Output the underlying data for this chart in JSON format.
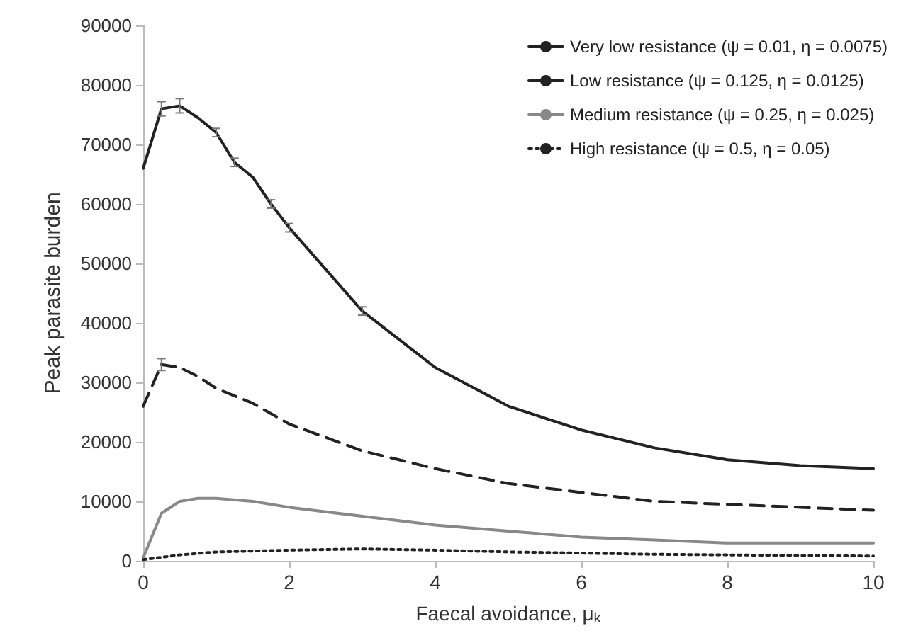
{
  "chart_data": {
    "type": "line",
    "xlabel": "Faecal avoidance, μ$_{k}$",
    "ylabel": "Peak parasite burden",
    "xlim": [
      0,
      10
    ],
    "xticks": [
      0,
      2,
      4,
      6,
      8,
      10
    ],
    "ylim": [
      0,
      90000
    ],
    "yticks": [
      0,
      10000,
      20000,
      30000,
      40000,
      50000,
      60000,
      70000,
      80000,
      90000
    ],
    "grid": false,
    "legend": "top right",
    "marker": "none",
    "series": [
      {
        "name": "Very low resistance (ψ = 0.01, η = 0.0075)",
        "color": "#222222",
        "line_style": "solid",
        "x": [
          0,
          0.25,
          0.5,
          0.75,
          1,
          1.25,
          1.5,
          1.75,
          2,
          3,
          4,
          5,
          6,
          7,
          8,
          9,
          10
        ],
        "values": [
          66000,
          76000,
          76500,
          74500,
          72000,
          67000,
          64500,
          60000,
          56000,
          42000,
          32500,
          26000,
          22000,
          19000,
          17000,
          16000,
          15500
        ],
        "errors": [
          null,
          1200,
          1200,
          null,
          700,
          700,
          null,
          700,
          700,
          700,
          null,
          null,
          null,
          null,
          null,
          null,
          null
        ]
      },
      {
        "name": "Low resistance (ψ = 0.125, η = 0.0125)",
        "color": "#222222",
        "line_style": "dashed",
        "x": [
          0,
          0.25,
          0.5,
          0.75,
          1,
          1.5,
          2,
          3,
          4,
          5,
          6,
          7,
          8,
          9,
          10
        ],
        "values": [
          26000,
          33000,
          32500,
          31000,
          29000,
          26500,
          23000,
          18500,
          15500,
          13000,
          11500,
          10000,
          9500,
          9000,
          8500
        ],
        "errors": [
          null,
          1000,
          null,
          null,
          null,
          null,
          null,
          null,
          null,
          null,
          null,
          null,
          null,
          null,
          null
        ]
      },
      {
        "name": "Medium resistance (ψ = 0.25, η = 0.025)",
        "color": "#888888",
        "line_style": "solid",
        "x": [
          0,
          0.25,
          0.5,
          0.75,
          1,
          1.5,
          2,
          3,
          4,
          5,
          6,
          7,
          8,
          9,
          10
        ],
        "values": [
          500,
          8000,
          10000,
          10500,
          10500,
          10000,
          9000,
          7500,
          6000,
          5000,
          4000,
          3500,
          3000,
          3000,
          3000
        ]
      },
      {
        "name": "High resistance (ψ = 0.5, η = 0.05)",
        "color": "#222222",
        "line_style": "dotted",
        "x": [
          0,
          0.25,
          0.5,
          1,
          2,
          3,
          4,
          5,
          6,
          7,
          8,
          9,
          10
        ],
        "values": [
          200,
          600,
          1000,
          1500,
          1800,
          2000,
          1800,
          1500,
          1300,
          1100,
          1000,
          900,
          800
        ]
      }
    ]
  }
}
